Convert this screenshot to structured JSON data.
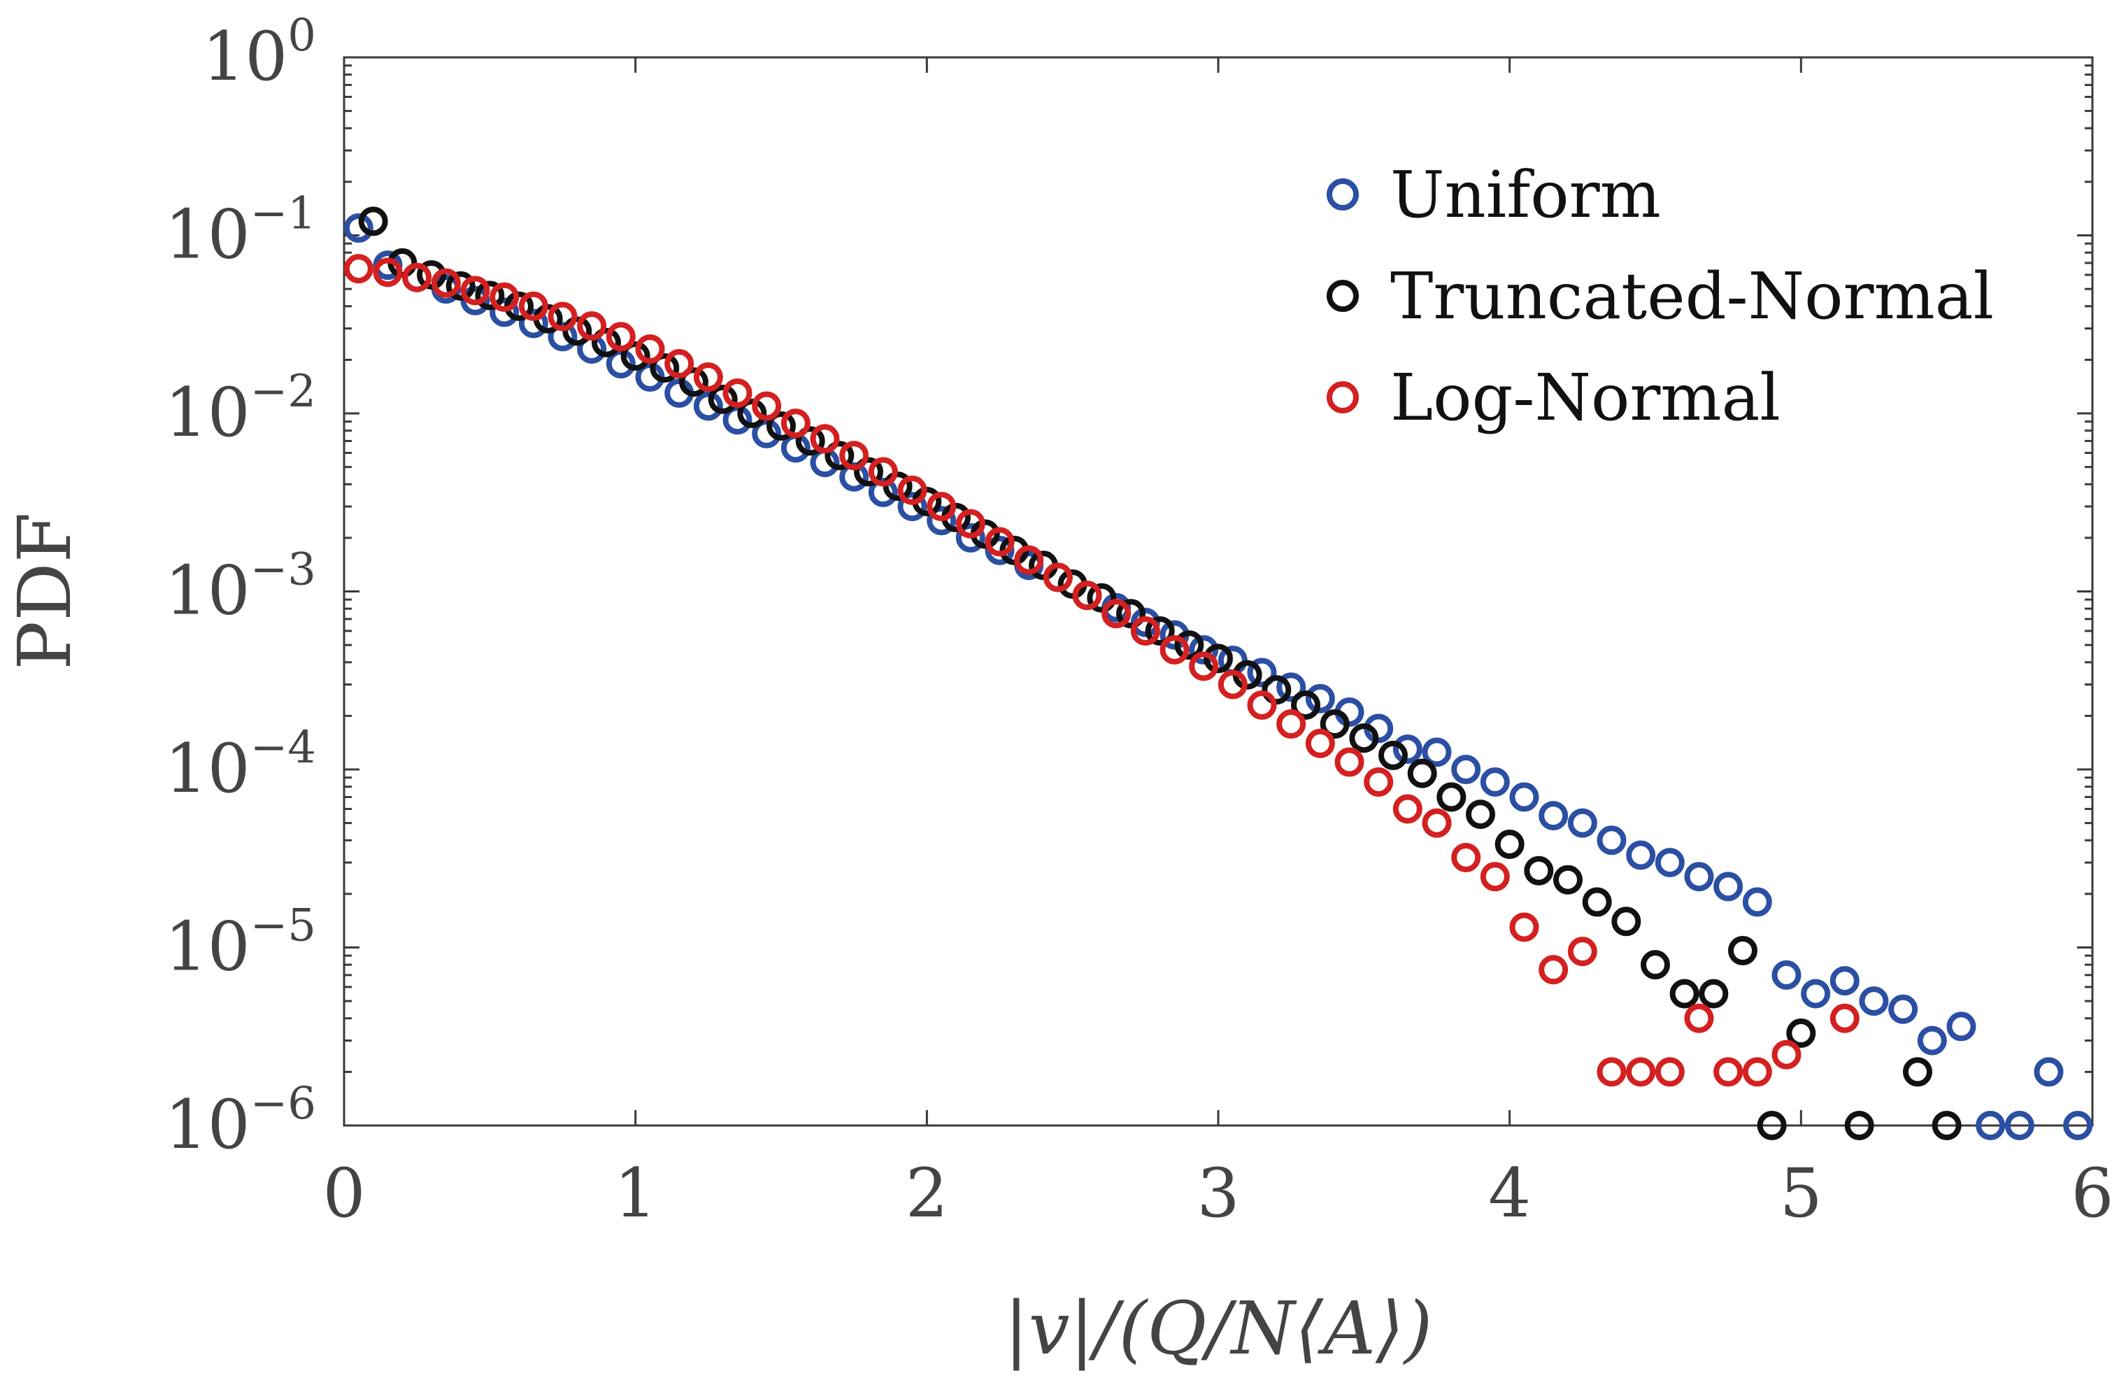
{
  "chart_data": {
    "type": "scatter",
    "title": "",
    "xlabel": "|v|/(Q/N⟨A⟩)",
    "ylabel": "PDF",
    "xlim": [
      0,
      6
    ],
    "ylim": [
      1e-06,
      1
    ],
    "yscale": "log",
    "grid": false,
    "legend_position": "top-right",
    "x_ticks": [
      "0",
      "1",
      "2",
      "3",
      "4",
      "5",
      "6"
    ],
    "y_ticks": [
      {
        "base": "10",
        "exp": "0"
      },
      {
        "base": "10",
        "exp": "−1"
      },
      {
        "base": "10",
        "exp": "−2"
      },
      {
        "base": "10",
        "exp": "−3"
      },
      {
        "base": "10",
        "exp": "−4"
      },
      {
        "base": "10",
        "exp": "−5"
      },
      {
        "base": "10",
        "exp": "−6"
      }
    ],
    "series": [
      {
        "name": "Uniform",
        "color": "#2b4fa3",
        "x": [
          0.05,
          0.15,
          0.25,
          0.35,
          0.45,
          0.55,
          0.65,
          0.75,
          0.85,
          0.95,
          1.05,
          1.15,
          1.25,
          1.35,
          1.45,
          1.55,
          1.65,
          1.75,
          1.85,
          1.95,
          2.05,
          2.15,
          2.25,
          2.35,
          2.45,
          2.55,
          2.65,
          2.75,
          2.85,
          2.95,
          3.05,
          3.15,
          3.25,
          3.35,
          3.45,
          3.55,
          3.65,
          3.75,
          3.85,
          3.95,
          4.05,
          4.15,
          4.25,
          4.35,
          4.45,
          4.55,
          4.65,
          4.75,
          4.85,
          4.95,
          5.05,
          5.15,
          5.25,
          5.35,
          5.45,
          5.55,
          5.65,
          5.75,
          5.85,
          5.95
        ],
        "y": [
          0.11,
          0.068,
          0.058,
          0.05,
          0.043,
          0.037,
          0.032,
          0.027,
          0.023,
          0.019,
          0.016,
          0.013,
          0.011,
          0.0092,
          0.0077,
          0.0064,
          0.0053,
          0.0044,
          0.0036,
          0.003,
          0.0025,
          0.002,
          0.0017,
          0.0014,
          0.0012,
          0.00095,
          0.00081,
          0.00067,
          0.00057,
          0.00047,
          0.00041,
          0.00035,
          0.00029,
          0.00025,
          0.00021,
          0.00017,
          0.00013,
          0.000125,
          0.0001,
          8.5e-05,
          7e-05,
          5.5e-05,
          5e-05,
          4e-05,
          3.3e-05,
          3e-05,
          2.5e-05,
          2.2e-05,
          1.8e-05,
          7e-06,
          5.5e-06,
          6.5e-06,
          5e-06,
          4.5e-06,
          3e-06,
          3.6e-06,
          1e-06,
          1e-06,
          2e-06,
          1e-06
        ]
      },
      {
        "name": "Truncated-Normal",
        "color": "#111111",
        "x": [
          0.1,
          0.2,
          0.3,
          0.4,
          0.5,
          0.6,
          0.7,
          0.8,
          0.9,
          1.0,
          1.1,
          1.2,
          1.3,
          1.4,
          1.5,
          1.6,
          1.7,
          1.8,
          1.9,
          2.0,
          2.1,
          2.2,
          2.3,
          2.4,
          2.5,
          2.6,
          2.7,
          2.8,
          2.9,
          3.0,
          3.1,
          3.2,
          3.3,
          3.4,
          3.5,
          3.6,
          3.7,
          3.8,
          3.9,
          4.0,
          4.1,
          4.2,
          4.3,
          4.4,
          4.5,
          4.6,
          4.7,
          4.8,
          4.9,
          5.0,
          5.2,
          5.4,
          5.5
        ],
        "y": [
          0.12,
          0.07,
          0.06,
          0.052,
          0.046,
          0.04,
          0.034,
          0.029,
          0.025,
          0.021,
          0.018,
          0.015,
          0.012,
          0.01,
          0.0085,
          0.007,
          0.0058,
          0.0047,
          0.0039,
          0.0032,
          0.0026,
          0.0021,
          0.0017,
          0.0014,
          0.0011,
          0.00092,
          0.00075,
          0.0006,
          0.0005,
          0.00042,
          0.00034,
          0.00028,
          0.00023,
          0.00018,
          0.00015,
          0.00012,
          9.5e-05,
          7e-05,
          5.6e-05,
          3.8e-05,
          2.7e-05,
          2.4e-05,
          1.8e-05,
          1.4e-05,
          8e-06,
          5.5e-06,
          5.5e-06,
          9.6e-06,
          1e-06,
          3.3e-06,
          1e-06,
          2e-06,
          1e-06
        ]
      },
      {
        "name": "Log-Normal",
        "color": "#d42020",
        "x": [
          0.05,
          0.15,
          0.25,
          0.35,
          0.45,
          0.55,
          0.65,
          0.75,
          0.85,
          0.95,
          1.05,
          1.15,
          1.25,
          1.35,
          1.45,
          1.55,
          1.65,
          1.75,
          1.85,
          1.95,
          2.05,
          2.15,
          2.25,
          2.35,
          2.45,
          2.55,
          2.65,
          2.75,
          2.85,
          2.95,
          3.05,
          3.15,
          3.25,
          3.35,
          3.45,
          3.55,
          3.65,
          3.75,
          3.85,
          3.95,
          4.05,
          4.15,
          4.25,
          4.35,
          4.45,
          4.55,
          4.65,
          4.75,
          4.85,
          4.95,
          5.15
        ],
        "y": [
          0.065,
          0.062,
          0.058,
          0.054,
          0.049,
          0.045,
          0.04,
          0.035,
          0.031,
          0.027,
          0.023,
          0.019,
          0.016,
          0.013,
          0.011,
          0.0088,
          0.0072,
          0.0058,
          0.0047,
          0.0037,
          0.003,
          0.0024,
          0.0019,
          0.0015,
          0.0012,
          0.00095,
          0.00075,
          0.0006,
          0.00047,
          0.00038,
          0.0003,
          0.00023,
          0.00018,
          0.00014,
          0.00011,
          8.5e-05,
          6e-05,
          5e-05,
          3.2e-05,
          2.5e-05,
          1.3e-05,
          7.5e-06,
          9.5e-06,
          2e-06,
          2e-06,
          2e-06,
          4e-06,
          2e-06,
          2e-06,
          2.5e-06,
          4e-06
        ]
      }
    ]
  }
}
